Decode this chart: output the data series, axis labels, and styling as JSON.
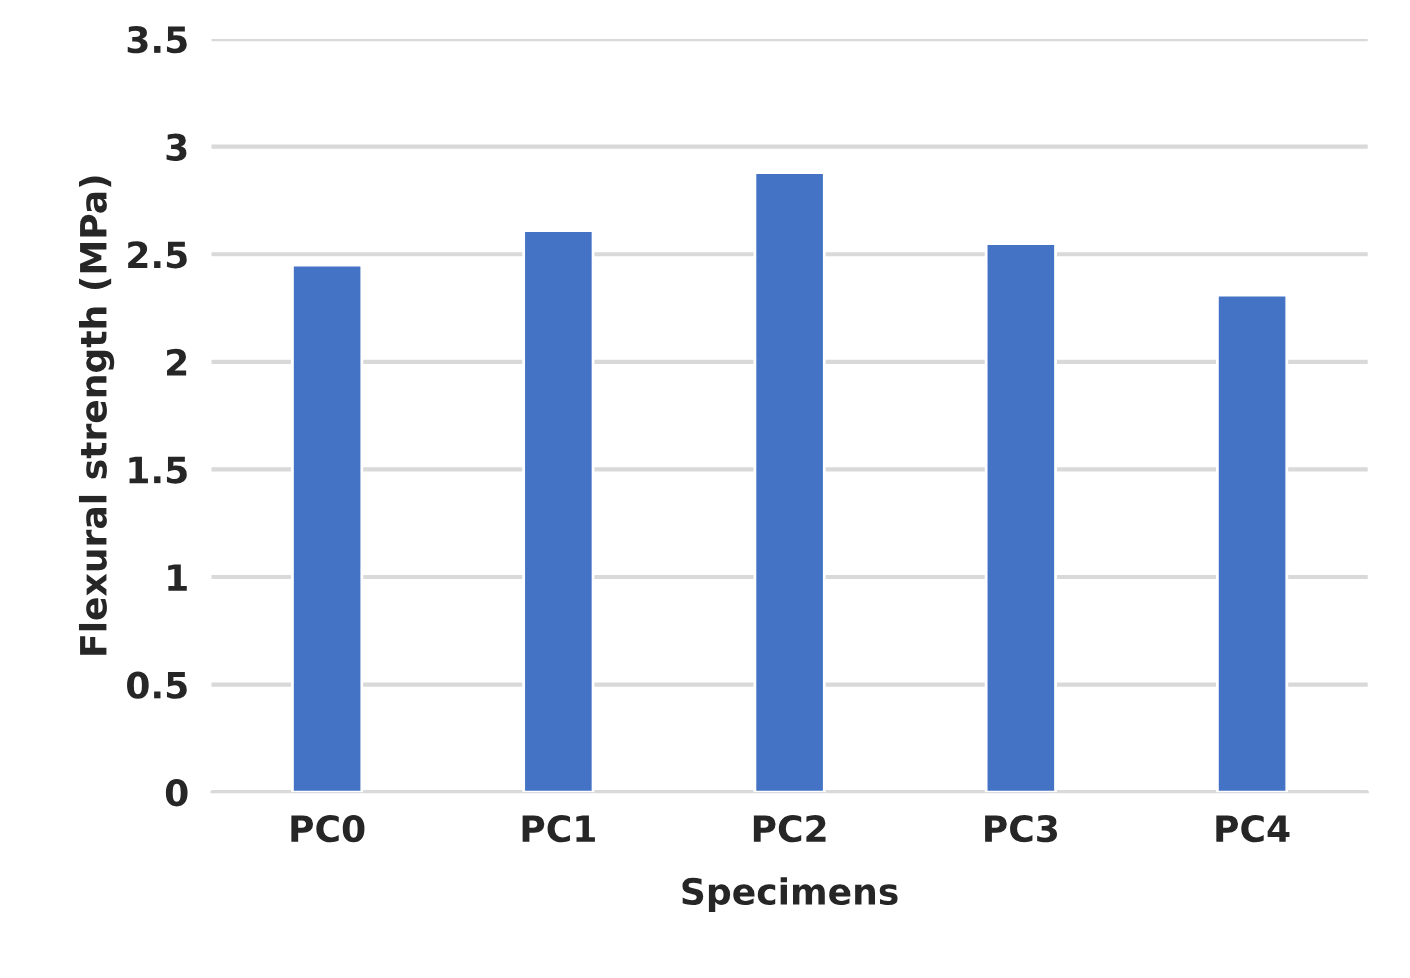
{
  "chart_data": {
    "type": "bar",
    "xlabel": "Specimens",
    "ylabel": "Flexural strength (MPa)",
    "categories": [
      "PC0",
      "PC1",
      "PC2",
      "PC3",
      "PC4"
    ],
    "values": [
      2.45,
      2.61,
      2.88,
      2.55,
      2.31
    ],
    "color": "#4472c4",
    "ylim": [
      0,
      3.5
    ],
    "yticks": [
      0,
      0.5,
      1,
      1.5,
      2,
      2.5,
      3,
      3.5
    ],
    "grid": "y"
  }
}
